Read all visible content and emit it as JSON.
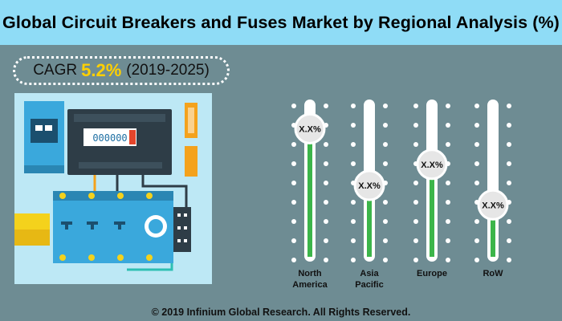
{
  "title": "Global Circuit Breakers and Fuses Market by Regional Analysis (%)",
  "cagr": {
    "label": "CAGR",
    "value": "5.2%",
    "period": "(2019-2025)"
  },
  "meter_readout": "000000",
  "chart_data": {
    "type": "bar",
    "title": "Global Circuit Breakers and Fuses Market by Regional Analysis (%)",
    "categories": [
      [
        "North",
        "America"
      ],
      [
        "Asia",
        "Pacific"
      ],
      [
        "Europe"
      ],
      [
        "RoW"
      ]
    ],
    "values": [
      82,
      47,
      60,
      35
    ],
    "value_labels": [
      "X.X%",
      "X.X%",
      "X.X%",
      "X.X%"
    ],
    "ylim": [
      0,
      100
    ],
    "grid": false,
    "colors": {
      "fill": "#3cb54a",
      "track": "#ffffff",
      "dots": "#ffffff"
    }
  },
  "footer": "© 2019 Infinium Global Research. All Rights Reserved."
}
